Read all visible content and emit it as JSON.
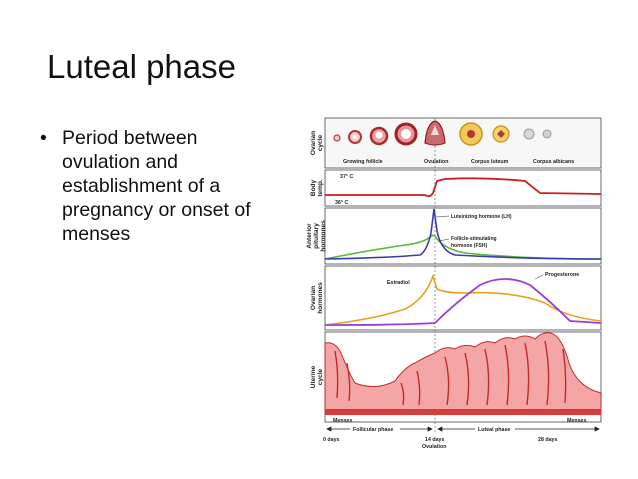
{
  "slide": {
    "title": "Luteal phase",
    "bullets": [
      "Period between ovulation and establishment of a pregnancy or onset of menses"
    ],
    "bullet_lines": [
      "Period between",
      "ovulation and",
      "establishment of a",
      "pregnancy or onset of",
      "menses"
    ]
  },
  "figure": {
    "panel_labels": {
      "ovarian_cycle": [
        "Ovarian",
        "cycle"
      ],
      "body_temp": [
        "Body",
        "temp."
      ],
      "anterior_pituitary": [
        "Anterior",
        "pituitary",
        "hormones"
      ],
      "ovarian_hormones": [
        "Ovarian",
        "hormones"
      ],
      "uterine_cycle": [
        "Uterine",
        "cycle"
      ]
    },
    "follicle_labels": [
      "Growing follicle",
      "Ovulation",
      "Corpus luteum",
      "Corpus albicans"
    ],
    "temp_labels": [
      "37° C",
      "36° C"
    ],
    "hormone_labels": [
      "Luteinizing hormone (LH)",
      "Follicle-stimulating",
      "hormone (FSH)"
    ],
    "ovarian_hormone_labels": [
      "Estradiol",
      "Progesterone"
    ],
    "menses_labels": [
      "Menses",
      "Menses"
    ],
    "phase_labels": [
      "Follicular phase",
      "Luteal phase"
    ],
    "day_labels": [
      "0 days",
      "14 days",
      "28 days"
    ],
    "ovulation_label": "Ovulation",
    "colors": {
      "temp_line": "#cc1f1f",
      "lh": "#3b3bb0",
      "fsh": "#5cb83a",
      "estradiol": "#e8a020",
      "progesterone": "#9a3fd0",
      "endometrium": "#f4a6a6",
      "frame": "#333333"
    }
  }
}
